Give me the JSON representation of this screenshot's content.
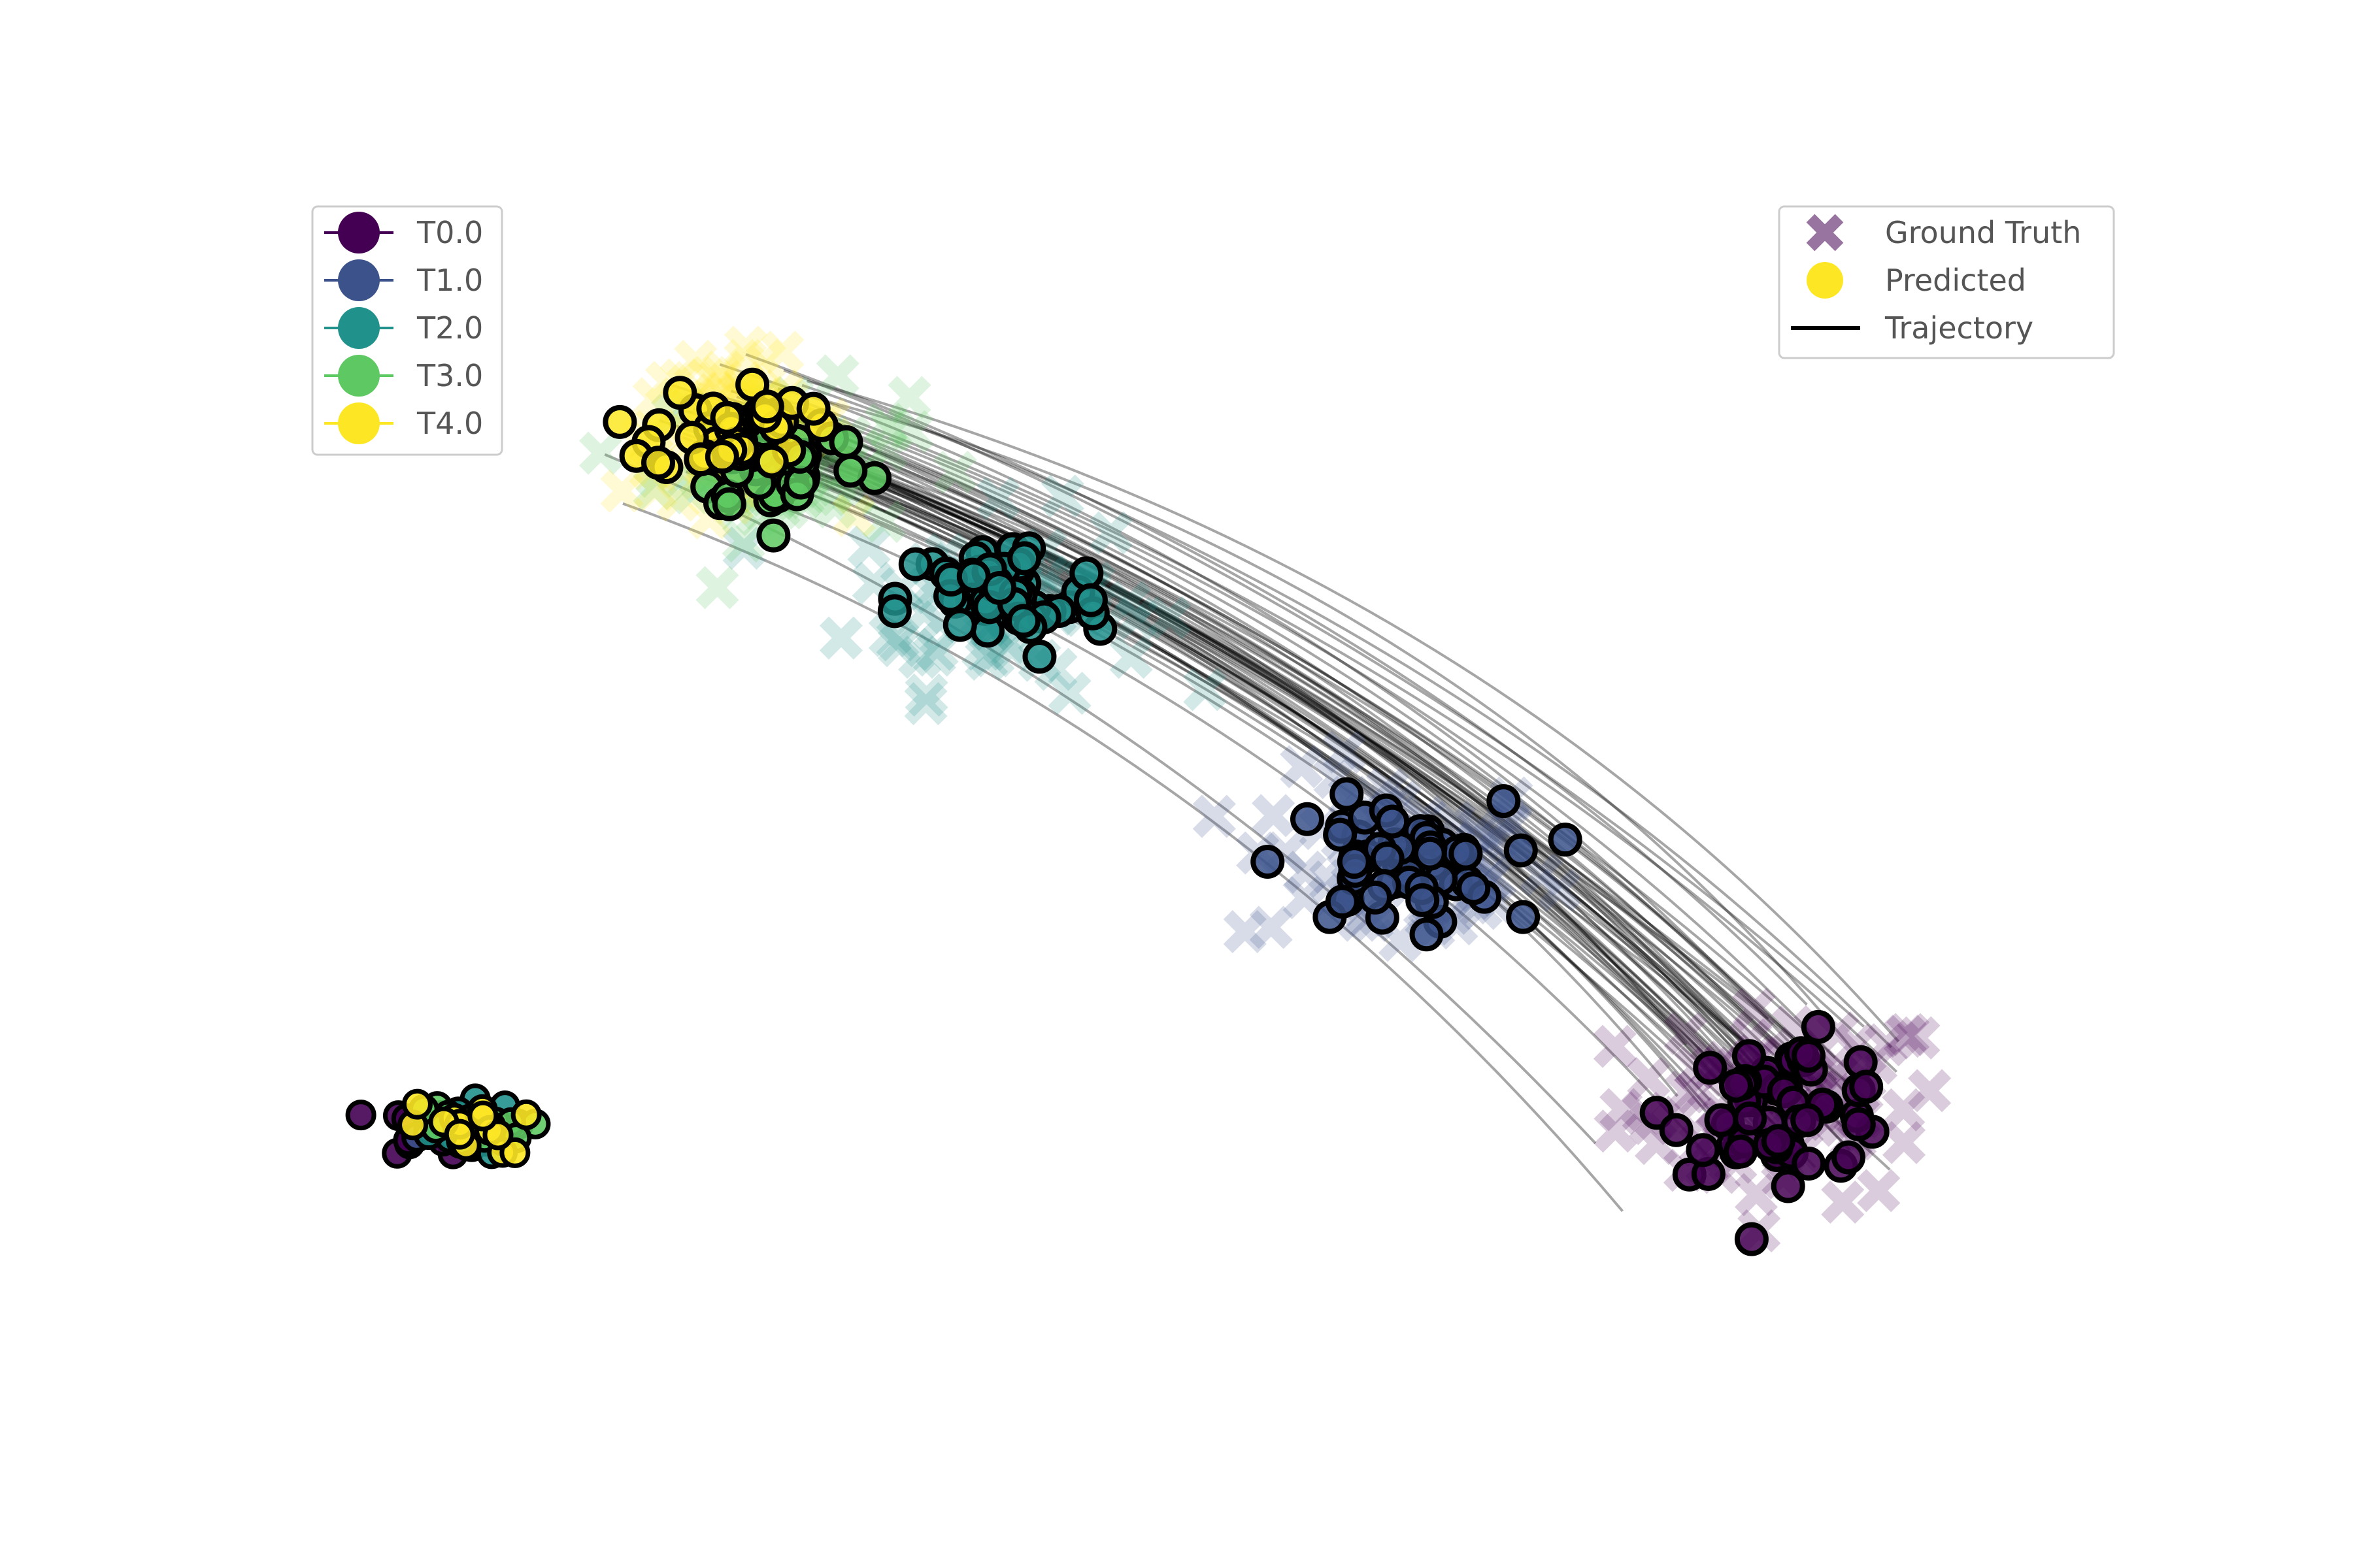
{
  "chart_data": {
    "type": "scatter",
    "title": "",
    "xlabel": "",
    "ylabel": "",
    "axes_visible": false,
    "grid": false,
    "xlim": [
      0,
      100
    ],
    "ylim": [
      0,
      100
    ],
    "legend_time": {
      "placement": "top-left",
      "entries": [
        {
          "label": "T0.0",
          "color": "#440154"
        },
        {
          "label": "T1.0",
          "color": "#3b528b"
        },
        {
          "label": "T2.0",
          "color": "#21918c"
        },
        {
          "label": "T3.0",
          "color": "#5ec962"
        },
        {
          "label": "T4.0",
          "color": "#fde725"
        }
      ]
    },
    "legend_style": {
      "placement": "top-right",
      "entries": [
        {
          "label": "Ground Truth",
          "marker": "x",
          "color": "#440154"
        },
        {
          "label": "Predicted",
          "marker": "circle",
          "color": "#fde725"
        },
        {
          "label": "Trajectory",
          "marker": "line",
          "color": "#000000"
        }
      ]
    },
    "series": [
      {
        "time": "T0.0",
        "color": "#440154",
        "center": [
          85,
          22
        ],
        "spread": [
          4.2,
          3.6
        ]
      },
      {
        "time": "T1.0",
        "color": "#3b528b",
        "center": [
          62,
          43
        ],
        "spread": [
          4.0,
          3.4
        ]
      },
      {
        "time": "T2.0",
        "color": "#21918c",
        "center": [
          39,
          66
        ],
        "spread": [
          3.8,
          3.4
        ]
      },
      {
        "time": "T3.0",
        "color": "#5ec962",
        "center": [
          26,
          78
        ],
        "spread": [
          3.2,
          2.8
        ]
      },
      {
        "time": "T4.0",
        "color": "#fde725",
        "center": [
          23,
          81
        ],
        "spread": [
          2.8,
          2.6
        ]
      }
    ],
    "secondary_cluster": {
      "center": [
        6,
        20
      ],
      "spread": [
        2.6,
        1.6
      ]
    }
  }
}
